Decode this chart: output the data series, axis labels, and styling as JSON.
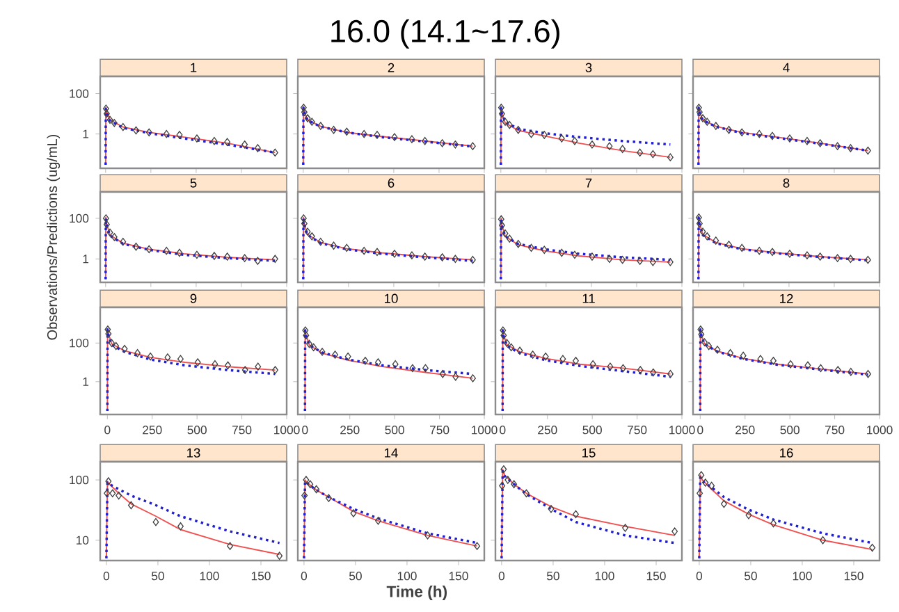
{
  "chart_data": [
    {
      "type": "line",
      "title": "1",
      "annotations": [
        "16.0 (14.1~17.6)"
      ],
      "log": "y",
      "xlim": [
        -30,
        1000
      ],
      "xticks": [
        0,
        250,
        500,
        750,
        1000
      ],
      "ylim": [
        0.02,
        700
      ],
      "yticks": [
        1,
        100
      ],
      "tick_labels": "y",
      "series": [
        {
          "type": "scatter",
          "color": "#404040",
          "marker": "diamond",
          "x": [
            2,
            6,
            24,
            48,
            96,
            168,
            240,
            336,
            408,
            504,
            600,
            672,
            768,
            840,
            936
          ],
          "values": [
            18,
            10,
            5,
            3.5,
            2.2,
            1.5,
            1.2,
            1.0,
            0.9,
            0.6,
            0.45,
            0.4,
            0.3,
            0.2,
            0.12
          ]
        },
        {
          "type": "line",
          "color": "#f05050",
          "line_style": "solid",
          "x": [
            0,
            1,
            4,
            24,
            96,
            240,
            432,
            672,
            936
          ],
          "values": [
            0.03,
            20,
            14,
            5,
            2.2,
            1.2,
            0.7,
            0.35,
            0.12
          ]
        },
        {
          "type": "line",
          "color": "#2020d0",
          "line_style": "dotted",
          "x": [
            0,
            1,
            4,
            24,
            96,
            240,
            432,
            672,
            936
          ],
          "values": [
            0.03,
            18,
            12,
            4.5,
            2,
            1.1,
            0.6,
            0.3,
            0.12
          ]
        }
      ]
    },
    {
      "type": "line",
      "title": "2",
      "log": "y",
      "xlim": [
        -30,
        1000
      ],
      "xticks": [
        0,
        250,
        500,
        750,
        1000
      ],
      "ylim": [
        0.02,
        700
      ],
      "yticks": [
        1,
        100
      ],
      "tick_labels": false,
      "series": [
        {
          "type": "scatter",
          "color": "#404040",
          "marker": "diamond",
          "x": [
            2,
            6,
            24,
            48,
            96,
            168,
            240,
            336,
            408,
            504,
            600,
            672,
            768,
            840,
            936
          ],
          "values": [
            20,
            12,
            6,
            4,
            2.5,
            1.6,
            1.3,
            1.0,
            0.9,
            0.7,
            0.55,
            0.45,
            0.35,
            0.3,
            0.25
          ]
        },
        {
          "type": "line",
          "color": "#f05050",
          "line_style": "solid",
          "x": [
            0,
            1,
            4,
            24,
            96,
            240,
            432,
            672,
            936
          ],
          "values": [
            0.03,
            22,
            14,
            5,
            2.4,
            1.2,
            0.75,
            0.45,
            0.25
          ]
        },
        {
          "type": "line",
          "color": "#2020d0",
          "line_style": "dotted",
          "x": [
            0,
            1,
            4,
            24,
            96,
            240,
            432,
            672,
            936
          ],
          "values": [
            0.03,
            20,
            13,
            4.8,
            2.3,
            1.2,
            0.7,
            0.42,
            0.24
          ]
        }
      ]
    },
    {
      "type": "line",
      "title": "3",
      "log": "y",
      "xlim": [
        -30,
        1000
      ],
      "xticks": [
        0,
        250,
        500,
        750,
        1000
      ],
      "ylim": [
        0.02,
        700
      ],
      "yticks": [
        1,
        100
      ],
      "tick_labels": false,
      "series": [
        {
          "type": "scatter",
          "color": "#404040",
          "marker": "diamond",
          "x": [
            2,
            6,
            24,
            48,
            96,
            168,
            240,
            336,
            408,
            504,
            600,
            672,
            768,
            840,
            936
          ],
          "values": [
            20,
            10,
            4,
            2.8,
            1.6,
            1.0,
            0.9,
            0.6,
            0.45,
            0.3,
            0.25,
            0.18,
            0.12,
            0.1,
            0.07
          ]
        },
        {
          "type": "line",
          "color": "#f05050",
          "line_style": "solid",
          "x": [
            0,
            1,
            4,
            24,
            96,
            240,
            432,
            672,
            936
          ],
          "values": [
            0.03,
            22,
            12,
            3.5,
            1.5,
            0.8,
            0.35,
            0.15,
            0.07
          ]
        },
        {
          "type": "line",
          "color": "#2020d0",
          "line_style": "dotted",
          "x": [
            0,
            1,
            4,
            24,
            96,
            240,
            432,
            672,
            936
          ],
          "values": [
            0.03,
            20,
            12,
            4,
            1.8,
            1.1,
            0.7,
            0.45,
            0.3
          ]
        }
      ]
    },
    {
      "type": "line",
      "title": "4",
      "log": "y",
      "xlim": [
        -30,
        1000
      ],
      "xticks": [
        0,
        250,
        500,
        750,
        1000
      ],
      "ylim": [
        0.02,
        700
      ],
      "yticks": [
        1,
        100
      ],
      "tick_labels": false,
      "series": [
        {
          "type": "scatter",
          "color": "#404040",
          "marker": "diamond",
          "x": [
            2,
            6,
            24,
            48,
            96,
            168,
            240,
            336,
            408,
            504,
            600,
            672,
            768,
            840,
            936
          ],
          "values": [
            20,
            12,
            6,
            4,
            2.5,
            1.6,
            1.2,
            1.0,
            0.8,
            0.6,
            0.45,
            0.35,
            0.25,
            0.2,
            0.15
          ]
        },
        {
          "type": "line",
          "color": "#f05050",
          "line_style": "solid",
          "x": [
            0,
            1,
            4,
            24,
            96,
            240,
            432,
            672,
            936
          ],
          "values": [
            0.03,
            22,
            14,
            5,
            2.4,
            1.2,
            0.7,
            0.35,
            0.15
          ]
        },
        {
          "type": "line",
          "color": "#2020d0",
          "line_style": "dotted",
          "x": [
            0,
            1,
            4,
            24,
            96,
            240,
            432,
            672,
            936
          ],
          "values": [
            0.03,
            20,
            13,
            4.8,
            2.3,
            1.1,
            0.65,
            0.33,
            0.15
          ]
        }
      ]
    },
    {
      "type": "line",
      "title": "5",
      "ylabel": "Observations/Predictions (ug/mL)",
      "log": "y",
      "xlim": [
        -30,
        1000
      ],
      "xticks": [
        0,
        250,
        500,
        750,
        1000
      ],
      "ylim": [
        0.07,
        2000
      ],
      "yticks": [
        1,
        100
      ],
      "tick_labels": "y",
      "series": [
        {
          "type": "scatter",
          "color": "#404040",
          "marker": "diamond",
          "x": [
            2,
            6,
            24,
            48,
            96,
            168,
            240,
            336,
            408,
            504,
            600,
            672,
            768,
            840,
            936
          ],
          "values": [
            100,
            50,
            20,
            12,
            7,
            4,
            3,
            2.5,
            2,
            1.6,
            1.4,
            1.3,
            1.1,
            0.8,
            1.0
          ]
        },
        {
          "type": "line",
          "color": "#f05050",
          "line_style": "solid",
          "x": [
            0,
            1,
            4,
            24,
            96,
            240,
            432,
            672,
            936
          ],
          "values": [
            0.1,
            110,
            60,
            15,
            6,
            3,
            1.8,
            1.2,
            0.9
          ]
        },
        {
          "type": "line",
          "color": "#2020d0",
          "line_style": "dotted",
          "x": [
            0,
            1,
            4,
            24,
            96,
            240,
            432,
            672,
            936
          ],
          "values": [
            0.1,
            100,
            55,
            14,
            5.5,
            2.8,
            1.6,
            1.1,
            0.8
          ]
        }
      ]
    },
    {
      "type": "line",
      "title": "6",
      "log": "y",
      "xlim": [
        -30,
        1000
      ],
      "xticks": [
        0,
        250,
        500,
        750,
        1000
      ],
      "ylim": [
        0.07,
        2000
      ],
      "yticks": [
        1,
        100
      ],
      "tick_labels": false,
      "series": [
        {
          "type": "scatter",
          "color": "#404040",
          "marker": "diamond",
          "x": [
            2,
            6,
            24,
            48,
            96,
            168,
            240,
            336,
            408,
            504,
            600,
            672,
            768,
            840,
            936
          ],
          "values": [
            100,
            55,
            22,
            13,
            7,
            4.5,
            3.5,
            2.5,
            2.2,
            1.8,
            1.5,
            1.3,
            1.2,
            1.0,
            0.9
          ]
        },
        {
          "type": "line",
          "color": "#f05050",
          "line_style": "solid",
          "x": [
            0,
            1,
            4,
            24,
            96,
            240,
            432,
            672,
            936
          ],
          "values": [
            0.1,
            110,
            60,
            16,
            6.5,
            3.2,
            2,
            1.3,
            0.9
          ]
        },
        {
          "type": "line",
          "color": "#2020d0",
          "line_style": "dotted",
          "x": [
            0,
            1,
            4,
            24,
            96,
            240,
            432,
            672,
            936
          ],
          "values": [
            0.1,
            100,
            55,
            15,
            6,
            3,
            1.8,
            1.2,
            0.8
          ]
        }
      ]
    },
    {
      "type": "line",
      "title": "7",
      "log": "y",
      "xlim": [
        -30,
        1000
      ],
      "xticks": [
        0,
        250,
        500,
        750,
        1000
      ],
      "ylim": [
        0.07,
        2000
      ],
      "yticks": [
        1,
        100
      ],
      "tick_labels": false,
      "series": [
        {
          "type": "scatter",
          "color": "#404040",
          "marker": "diamond",
          "x": [
            2,
            6,
            24,
            48,
            96,
            168,
            240,
            336,
            408,
            504,
            600,
            672,
            768,
            840,
            936
          ],
          "values": [
            90,
            45,
            18,
            10,
            5.5,
            3.5,
            2.8,
            2,
            1.6,
            1.3,
            1.0,
            0.9,
            0.8,
            0.7,
            0.7
          ]
        },
        {
          "type": "line",
          "color": "#f05050",
          "line_style": "solid",
          "x": [
            0,
            1,
            4,
            24,
            96,
            240,
            432,
            672,
            936
          ],
          "values": [
            0.1,
            100,
            55,
            13,
            5,
            2.5,
            1.4,
            0.9,
            0.7
          ]
        },
        {
          "type": "line",
          "color": "#2020d0",
          "line_style": "dotted",
          "x": [
            0,
            1,
            4,
            24,
            96,
            240,
            432,
            672,
            936
          ],
          "values": [
            0.1,
            95,
            50,
            13,
            5.5,
            3,
            1.8,
            1.2,
            0.9
          ]
        }
      ]
    },
    {
      "type": "line",
      "title": "8",
      "log": "y",
      "xlim": [
        -30,
        1000
      ],
      "xticks": [
        0,
        250,
        500,
        750,
        1000
      ],
      "ylim": [
        0.07,
        2000
      ],
      "yticks": [
        1,
        100
      ],
      "tick_labels": false,
      "series": [
        {
          "type": "scatter",
          "color": "#404040",
          "marker": "diamond",
          "x": [
            2,
            6,
            24,
            48,
            96,
            168,
            240,
            336,
            408,
            504,
            600,
            672,
            768,
            840,
            936
          ],
          "values": [
            110,
            55,
            22,
            13,
            8,
            5,
            3.5,
            2.5,
            2.2,
            1.8,
            1.5,
            1.3,
            1.1,
            1.0,
            0.9
          ]
        },
        {
          "type": "line",
          "color": "#f05050",
          "line_style": "solid",
          "x": [
            0,
            1,
            4,
            24,
            96,
            240,
            432,
            672,
            936
          ],
          "values": [
            0.1,
            120,
            65,
            16,
            6.5,
            3.2,
            2,
            1.3,
            0.9
          ]
        },
        {
          "type": "line",
          "color": "#2020d0",
          "line_style": "dotted",
          "x": [
            0,
            1,
            4,
            24,
            96,
            240,
            432,
            672,
            936
          ],
          "values": [
            0.1,
            110,
            60,
            15,
            6,
            3,
            1.9,
            1.25,
            0.85
          ]
        }
      ]
    },
    {
      "type": "line",
      "title": "9",
      "log": "y",
      "xlim": [
        -40,
        1000
      ],
      "xticks": [
        0,
        250,
        500,
        750,
        1000
      ],
      "ylim": [
        0.02,
        7000
      ],
      "yticks": [
        1,
        100
      ],
      "series": [
        {
          "type": "scatter",
          "color": "#404040",
          "marker": "diamond",
          "x": [
            2,
            6,
            24,
            48,
            96,
            168,
            240,
            336,
            408,
            504,
            600,
            672,
            768,
            840,
            936
          ],
          "values": [
            500,
            300,
            100,
            70,
            50,
            30,
            20,
            18,
            15,
            10,
            8,
            7,
            4,
            6,
            4
          ]
        },
        {
          "type": "line",
          "color": "#f05050",
          "line_style": "solid",
          "x": [
            0,
            1,
            4,
            24,
            96,
            240,
            432,
            672,
            936
          ],
          "values": [
            0.03,
            550,
            350,
            90,
            40,
            18,
            10,
            6,
            4
          ]
        },
        {
          "type": "line",
          "color": "#2020d0",
          "line_style": "dotted",
          "x": [
            0,
            1,
            4,
            24,
            96,
            240,
            432,
            672,
            936
          ],
          "values": [
            0.03,
            500,
            300,
            80,
            35,
            14,
            7,
            4,
            2.5
          ]
        }
      ]
    },
    {
      "type": "line",
      "title": "10",
      "log": "y",
      "xlim": [
        -40,
        1000
      ],
      "xticks": [
        0,
        250,
        500,
        750,
        1000
      ],
      "ylim": [
        0.02,
        7000
      ],
      "yticks": [
        1,
        100
      ],
      "tick_labels": "x",
      "series": [
        {
          "type": "scatter",
          "color": "#404040",
          "marker": "diamond",
          "x": [
            2,
            6,
            24,
            48,
            96,
            168,
            240,
            336,
            408,
            504,
            600,
            672,
            768,
            840,
            936
          ],
          "values": [
            450,
            250,
            90,
            60,
            35,
            25,
            20,
            12,
            10,
            8,
            5,
            5,
            2.5,
            1.8,
            1.5
          ]
        },
        {
          "type": "line",
          "color": "#f05050",
          "line_style": "solid",
          "x": [
            0,
            1,
            4,
            24,
            96,
            240,
            432,
            672,
            936
          ],
          "values": [
            0.03,
            500,
            300,
            80,
            30,
            13,
            6,
            3,
            1.5
          ]
        },
        {
          "type": "line",
          "color": "#2020d0",
          "line_style": "dotted",
          "x": [
            0,
            1,
            4,
            24,
            96,
            240,
            432,
            672,
            936
          ],
          "values": [
            0.03,
            450,
            280,
            80,
            32,
            14,
            7,
            4,
            2.5
          ]
        }
      ]
    },
    {
      "type": "line",
      "title": "11",
      "log": "y",
      "xlim": [
        -40,
        1000
      ],
      "xticks": [
        0,
        250,
        500,
        750,
        1000
      ],
      "ylim": [
        0.02,
        7000
      ],
      "yticks": [
        1,
        100
      ],
      "tick_labels": "x",
      "series": [
        {
          "type": "scatter",
          "color": "#404040",
          "marker": "diamond",
          "x": [
            2,
            6,
            24,
            48,
            96,
            168,
            240,
            336,
            408,
            504,
            600,
            672,
            768,
            840,
            936
          ],
          "values": [
            450,
            250,
            100,
            60,
            40,
            25,
            20,
            15,
            12,
            8,
            6,
            5,
            4,
            3,
            2.5
          ]
        },
        {
          "type": "line",
          "color": "#f05050",
          "line_style": "solid",
          "x": [
            0,
            1,
            4,
            24,
            96,
            240,
            432,
            672,
            936
          ],
          "values": [
            0.03,
            500,
            300,
            80,
            35,
            16,
            8,
            5,
            2.5
          ]
        },
        {
          "type": "line",
          "color": "#2020d0",
          "line_style": "dotted",
          "x": [
            0,
            1,
            4,
            24,
            96,
            240,
            432,
            672,
            936
          ],
          "values": [
            0.03,
            450,
            260,
            70,
            30,
            13,
            6.5,
            3.5,
            1.8
          ]
        }
      ]
    },
    {
      "type": "line",
      "title": "12",
      "log": "y",
      "xlim": [
        -40,
        1000
      ],
      "xticks": [
        0,
        250,
        500,
        750,
        1000
      ],
      "ylim": [
        0.02,
        7000
      ],
      "yticks": [
        1,
        100
      ],
      "tick_labels": "x",
      "series": [
        {
          "type": "scatter",
          "color": "#404040",
          "marker": "diamond",
          "x": [
            2,
            6,
            24,
            48,
            96,
            168,
            240,
            336,
            408,
            504,
            600,
            672,
            768,
            840,
            936
          ],
          "values": [
            500,
            280,
            110,
            70,
            45,
            30,
            22,
            15,
            12,
            8,
            7,
            5,
            4,
            3.2,
            2.5
          ]
        },
        {
          "type": "line",
          "color": "#f05050",
          "line_style": "solid",
          "x": [
            0,
            1,
            4,
            24,
            96,
            240,
            432,
            672,
            936
          ],
          "values": [
            0.03,
            550,
            320,
            90,
            38,
            16,
            8,
            4.5,
            2.5
          ]
        },
        {
          "type": "line",
          "color": "#2020d0",
          "line_style": "dotted",
          "x": [
            0,
            1,
            4,
            24,
            96,
            240,
            432,
            672,
            936
          ],
          "values": [
            0.03,
            500,
            300,
            85,
            36,
            15,
            7.5,
            4.2,
            2.3
          ]
        }
      ]
    },
    {
      "type": "line",
      "title": "13",
      "log": "y",
      "xlim": [
        -6,
        175
      ],
      "xticks": [
        0,
        50,
        100,
        150
      ],
      "ylim": [
        4.6,
        200
      ],
      "yticks": [
        10,
        100
      ],
      "series": [
        {
          "type": "scatter",
          "color": "#404040",
          "marker": "diamond",
          "x": [
            0.5,
            2,
            6,
            12,
            24,
            48,
            72,
            120,
            168
          ],
          "values": [
            60,
            95,
            60,
            55,
            38,
            20,
            17,
            8,
            5.5
          ]
        },
        {
          "type": "line",
          "color": "#f05050",
          "line_style": "solid",
          "x": [
            0,
            1,
            3,
            12,
            24,
            48,
            72,
            120,
            168
          ],
          "values": [
            5,
            95,
            85,
            60,
            40,
            25,
            15,
            8.5,
            5.8
          ]
        },
        {
          "type": "line",
          "color": "#2020d0",
          "line_style": "dotted",
          "x": [
            0,
            1,
            3,
            12,
            24,
            48,
            72,
            120,
            168
          ],
          "values": [
            5,
            90,
            85,
            70,
            55,
            38,
            25,
            14,
            9
          ]
        }
      ]
    },
    {
      "type": "line",
      "title": "14",
      "xlabel": "Time (h)",
      "log": "y",
      "xlim": [
        -6,
        175
      ],
      "xticks": [
        0,
        50,
        100,
        150
      ],
      "ylim": [
        4.6,
        200
      ],
      "yticks": [
        10,
        100
      ],
      "tick_labels": "x",
      "series": [
        {
          "type": "scatter",
          "color": "#404040",
          "marker": "diamond",
          "x": [
            0.5,
            2,
            6,
            12,
            24,
            48,
            72,
            120,
            168
          ],
          "values": [
            55,
            100,
            85,
            70,
            50,
            28,
            21,
            12,
            8
          ]
        },
        {
          "type": "line",
          "color": "#f05050",
          "line_style": "solid",
          "x": [
            0,
            1,
            3,
            12,
            24,
            48,
            72,
            120,
            168
          ],
          "values": [
            5,
            100,
            90,
            68,
            52,
            30,
            21,
            12,
            8
          ]
        },
        {
          "type": "line",
          "color": "#2020d0",
          "line_style": "dotted",
          "x": [
            0,
            1,
            3,
            12,
            24,
            48,
            72,
            120,
            168
          ],
          "values": [
            5,
            95,
            88,
            68,
            52,
            33,
            23,
            13,
            9
          ]
        }
      ]
    },
    {
      "type": "line",
      "title": "15",
      "log": "y",
      "xlim": [
        -6,
        175
      ],
      "xticks": [
        0,
        50,
        100,
        150
      ],
      "ylim": [
        4.6,
        200
      ],
      "yticks": [
        10,
        100
      ],
      "tick_labels": "x",
      "series": [
        {
          "type": "scatter",
          "color": "#404040",
          "marker": "diamond",
          "x": [
            0.5,
            2,
            6,
            12,
            24,
            48,
            72,
            120,
            168
          ],
          "values": [
            80,
            150,
            100,
            85,
            60,
            33,
            27,
            16,
            14
          ]
        },
        {
          "type": "line",
          "color": "#f05050",
          "line_style": "solid",
          "x": [
            0,
            1,
            3,
            12,
            24,
            48,
            72,
            120,
            168
          ],
          "values": [
            5,
            150,
            120,
            85,
            60,
            36,
            25,
            17,
            12
          ]
        },
        {
          "type": "line",
          "color": "#2020d0",
          "line_style": "dotted",
          "x": [
            0,
            1,
            3,
            12,
            24,
            48,
            72,
            120,
            168
          ],
          "values": [
            5,
            140,
            115,
            85,
            58,
            33,
            20,
            12,
            9
          ]
        }
      ]
    },
    {
      "type": "line",
      "title": "16",
      "log": "y",
      "xlim": [
        -6,
        175
      ],
      "xticks": [
        0,
        50,
        100,
        150
      ],
      "ylim": [
        4.6,
        200
      ],
      "yticks": [
        10,
        100
      ],
      "tick_labels": "x",
      "series": [
        {
          "type": "scatter",
          "color": "#404040",
          "marker": "diamond",
          "x": [
            0.5,
            2,
            6,
            12,
            24,
            48,
            72,
            120,
            168
          ],
          "values": [
            60,
            120,
            90,
            80,
            40,
            26,
            19,
            10,
            7.5
          ]
        },
        {
          "type": "line",
          "color": "#f05050",
          "line_style": "solid",
          "x": [
            0,
            1,
            3,
            12,
            24,
            48,
            72,
            120,
            168
          ],
          "values": [
            5,
            120,
            100,
            70,
            45,
            27,
            18,
            10,
            7
          ]
        },
        {
          "type": "line",
          "color": "#2020d0",
          "line_style": "dotted",
          "x": [
            0,
            1,
            3,
            12,
            24,
            48,
            72,
            120,
            168
          ],
          "values": [
            5,
            110,
            95,
            75,
            52,
            32,
            22,
            13,
            9
          ]
        }
      ]
    }
  ]
}
